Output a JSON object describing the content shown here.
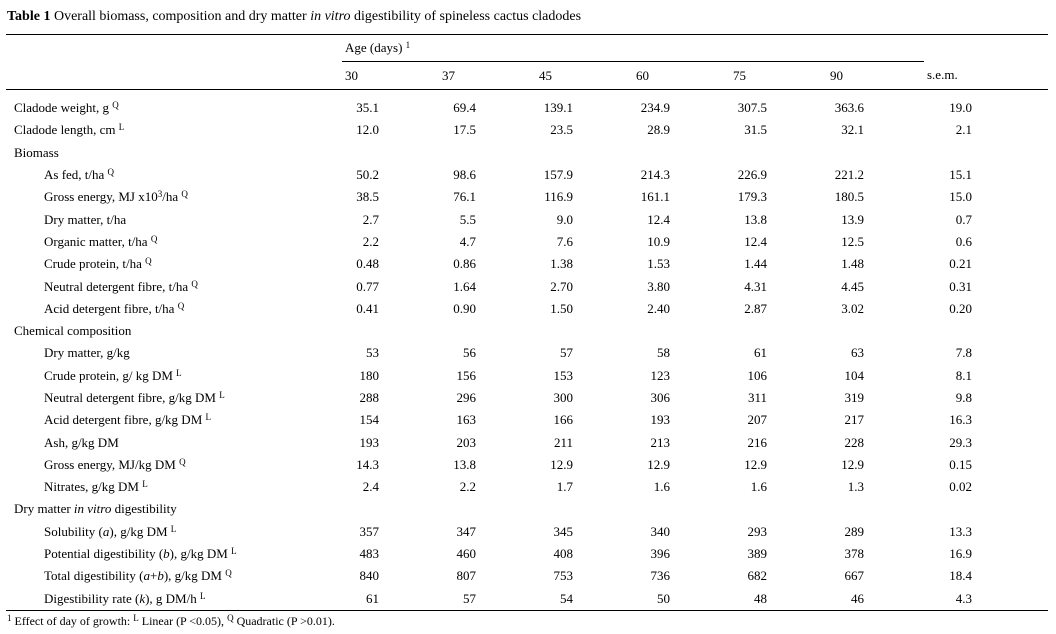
{
  "title": {
    "segments": [
      {
        "t": "Table 1",
        "b": true
      },
      {
        "t": " Overall biomass, composition and dry matter "
      },
      {
        "t": "in vitro",
        "i": true
      },
      {
        "t": " digestibility of spineless cactus cladodes"
      }
    ]
  },
  "header": {
    "age_group": {
      "segments": [
        {
          "t": "Age (days) "
        },
        {
          "t": "1",
          "sup": true
        }
      ]
    },
    "age_columns": [
      "30",
      "37",
      "45",
      "60",
      "75",
      "90"
    ],
    "sem_label": "s.e.m."
  },
  "rows": [
    {
      "indent": 0,
      "section": false,
      "segs": [
        {
          "t": "Cladode weight, g "
        },
        {
          "t": "Q",
          "sup": true
        }
      ],
      "values": [
        "35.1",
        "69.4",
        "139.1",
        "234.9",
        "307.5",
        "363.6",
        "19.0"
      ]
    },
    {
      "indent": 0,
      "section": false,
      "segs": [
        {
          "t": "Cladode length, cm "
        },
        {
          "t": "L",
          "sup": true
        }
      ],
      "values": [
        "12.0",
        "17.5",
        "23.5",
        "28.9",
        "31.5",
        "32.1",
        "2.1"
      ]
    },
    {
      "indent": 0,
      "section": true,
      "segs": [
        {
          "t": "Biomass"
        }
      ],
      "values": []
    },
    {
      "indent": 1,
      "section": false,
      "segs": [
        {
          "t": "As fed, t/ha "
        },
        {
          "t": "Q",
          "sup": true
        }
      ],
      "values": [
        "50.2",
        "98.6",
        "157.9",
        "214.3",
        "226.9",
        "221.2",
        "15.1"
      ]
    },
    {
      "indent": 1,
      "section": false,
      "segs": [
        {
          "t": "Gross energy, MJ x10"
        },
        {
          "t": "3",
          "sup": true
        },
        {
          "t": "/ha "
        },
        {
          "t": "Q",
          "sup": true
        }
      ],
      "values": [
        "38.5",
        "76.1",
        "116.9",
        "161.1",
        "179.3",
        "180.5",
        "15.0"
      ]
    },
    {
      "indent": 1,
      "section": false,
      "segs": [
        {
          "t": "Dry matter, t/ha"
        }
      ],
      "values": [
        "2.7",
        "5.5",
        "9.0",
        "12.4",
        "13.8",
        "13.9",
        "0.7"
      ]
    },
    {
      "indent": 1,
      "section": false,
      "segs": [
        {
          "t": "Organic matter, t/ha "
        },
        {
          "t": "Q",
          "sup": true
        }
      ],
      "values": [
        "2.2",
        "4.7",
        "7.6",
        "10.9",
        "12.4",
        "12.5",
        "0.6"
      ]
    },
    {
      "indent": 1,
      "section": false,
      "segs": [
        {
          "t": "Crude protein, t/ha "
        },
        {
          "t": "Q",
          "sup": true
        }
      ],
      "values": [
        "0.48",
        "0.86",
        "1.38",
        "1.53",
        "1.44",
        "1.48",
        "0.21"
      ]
    },
    {
      "indent": 1,
      "section": false,
      "segs": [
        {
          "t": "Neutral detergent fibre, t/ha "
        },
        {
          "t": "Q",
          "sup": true
        }
      ],
      "values": [
        "0.77",
        "1.64",
        "2.70",
        "3.80",
        "4.31",
        "4.45",
        "0.31"
      ]
    },
    {
      "indent": 1,
      "section": false,
      "segs": [
        {
          "t": "Acid detergent fibre, t/ha "
        },
        {
          "t": "Q",
          "sup": true
        }
      ],
      "values": [
        "0.41",
        "0.90",
        "1.50",
        "2.40",
        "2.87",
        "3.02",
        "0.20"
      ]
    },
    {
      "indent": 0,
      "section": true,
      "segs": [
        {
          "t": "Chemical composition"
        }
      ],
      "values": []
    },
    {
      "indent": 1,
      "section": false,
      "segs": [
        {
          "t": "Dry matter, g/kg"
        }
      ],
      "values": [
        "53",
        "56",
        "57",
        "58",
        "61",
        "63",
        "7.8"
      ]
    },
    {
      "indent": 1,
      "section": false,
      "segs": [
        {
          "t": "Crude protein, g/ kg DM "
        },
        {
          "t": "L",
          "sup": true
        }
      ],
      "values": [
        "180",
        "156",
        "153",
        "123",
        "106",
        "104",
        "8.1"
      ]
    },
    {
      "indent": 1,
      "section": false,
      "segs": [
        {
          "t": "Neutral detergent fibre, g/kg DM "
        },
        {
          "t": "L",
          "sup": true
        }
      ],
      "values": [
        "288",
        "296",
        "300",
        "306",
        "311",
        "319",
        "9.8"
      ]
    },
    {
      "indent": 1,
      "section": false,
      "segs": [
        {
          "t": "Acid detergent fibre, g/kg DM "
        },
        {
          "t": "L",
          "sup": true
        }
      ],
      "values": [
        "154",
        "163",
        "166",
        "193",
        "207",
        "217",
        "16.3"
      ]
    },
    {
      "indent": 1,
      "section": false,
      "segs": [
        {
          "t": "Ash, g/kg DM"
        }
      ],
      "values": [
        "193",
        "203",
        "211",
        "213",
        "216",
        "228",
        "29.3"
      ]
    },
    {
      "indent": 1,
      "section": false,
      "segs": [
        {
          "t": "Gross energy, MJ/kg DM "
        },
        {
          "t": "Q",
          "sup": true
        }
      ],
      "values": [
        "14.3",
        "13.8",
        "12.9",
        "12.9",
        "12.9",
        "12.9",
        "0.15"
      ]
    },
    {
      "indent": 1,
      "section": false,
      "segs": [
        {
          "t": "Nitrates, g/kg DM "
        },
        {
          "t": "L",
          "sup": true
        }
      ],
      "values": [
        "2.4",
        "2.2",
        "1.7",
        "1.6",
        "1.6",
        "1.3",
        "0.02"
      ]
    },
    {
      "indent": 0,
      "section": true,
      "segs": [
        {
          "t": "Dry matter "
        },
        {
          "t": "in vitro",
          "i": true
        },
        {
          "t": " digestibility"
        }
      ],
      "values": []
    },
    {
      "indent": 1,
      "section": false,
      "segs": [
        {
          "t": "Solubility ("
        },
        {
          "t": "a",
          "i": true
        },
        {
          "t": "), g/kg DM "
        },
        {
          "t": "L",
          "sup": true
        }
      ],
      "values": [
        "357",
        "347",
        "345",
        "340",
        "293",
        "289",
        "13.3"
      ]
    },
    {
      "indent": 1,
      "section": false,
      "segs": [
        {
          "t": "Potential digestibility ("
        },
        {
          "t": "b",
          "i": true
        },
        {
          "t": "), g/kg DM "
        },
        {
          "t": "L",
          "sup": true
        }
      ],
      "values": [
        "483",
        "460",
        "408",
        "396",
        "389",
        "378",
        "16.9"
      ]
    },
    {
      "indent": 1,
      "section": false,
      "segs": [
        {
          "t": "Total digestibility ("
        },
        {
          "t": "a",
          "i": true
        },
        {
          "t": "+"
        },
        {
          "t": "b",
          "i": true
        },
        {
          "t": "), g/kg DM "
        },
        {
          "t": "Q",
          "sup": true
        }
      ],
      "values": [
        "840",
        "807",
        "753",
        "736",
        "682",
        "667",
        "18.4"
      ]
    },
    {
      "indent": 1,
      "section": false,
      "segs": [
        {
          "t": "Digestibility rate ("
        },
        {
          "t": "k",
          "i": true
        },
        {
          "t": "), g DM/h "
        },
        {
          "t": "L",
          "sup": true
        }
      ],
      "values": [
        "61",
        "57",
        "54",
        "50",
        "48",
        "46",
        "4.3"
      ]
    }
  ],
  "footnote": {
    "segments": [
      {
        "t": "1",
        "sup": true
      },
      {
        "t": " Effect of day of growth: "
      },
      {
        "t": "L",
        "sup": true
      },
      {
        "t": " Linear (P <0.05), "
      },
      {
        "t": "Q",
        "sup": true
      },
      {
        "t": " Quadratic (P >0.01)."
      }
    ]
  }
}
